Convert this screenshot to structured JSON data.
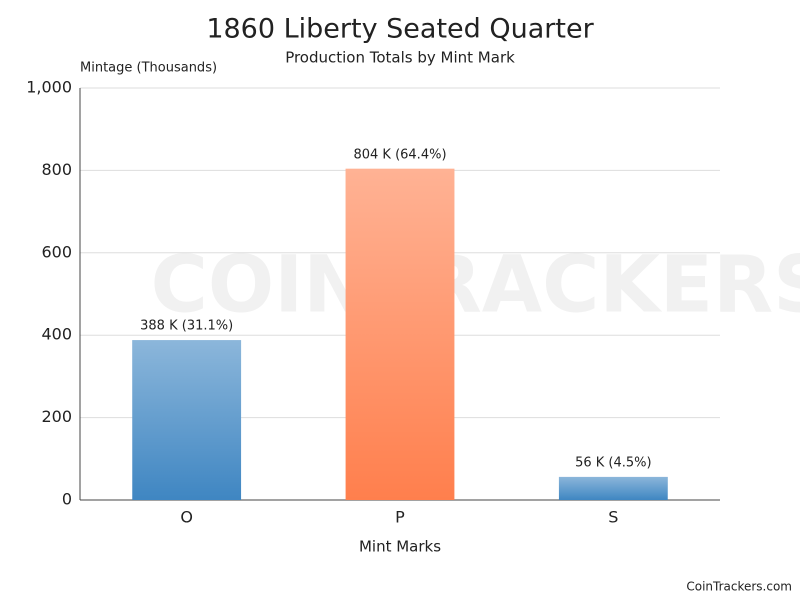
{
  "chart_data": {
    "type": "bar",
    "title": "1860 Liberty Seated Quarter",
    "subtitle": "Production Totals by Mint Mark",
    "y_label": "Mintage (Thousands)",
    "x_label": "Mint Marks",
    "watermark": "COINTRACKERS",
    "credit": "CoinTrackers.com",
    "categories": [
      "O",
      "P",
      "S"
    ],
    "values": [
      388,
      804,
      56
    ],
    "value_labels": [
      "388 K (31.1%)",
      "804 K (64.4%)",
      "56 K (4.5%)"
    ],
    "colors": [
      "#3f86c2",
      "#ff7f4d",
      "#3f86c2"
    ],
    "ylim": [
      0,
      1000
    ],
    "yticks": [
      0,
      200,
      400,
      600,
      800,
      {
        "value": 1000,
        "label": "1,000"
      }
    ],
    "grid": true
  }
}
